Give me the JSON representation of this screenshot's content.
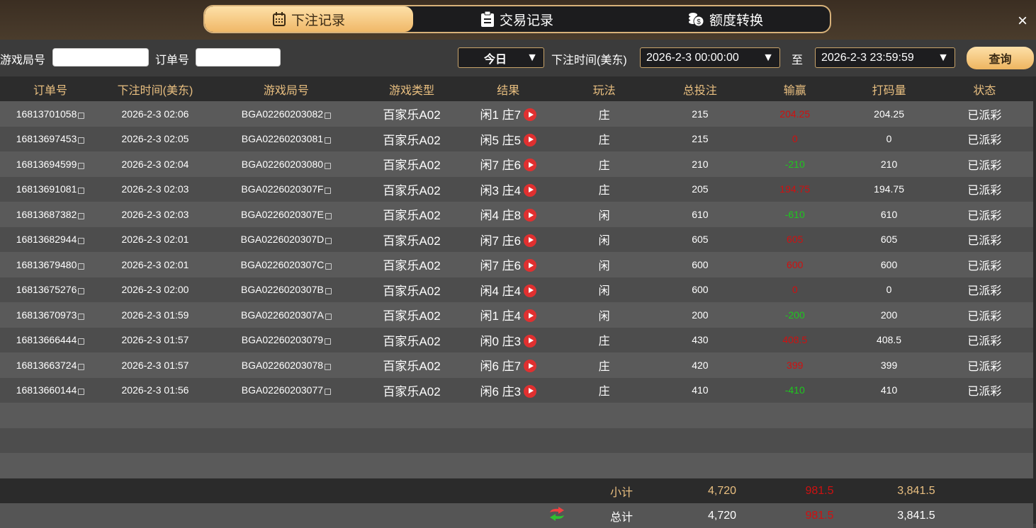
{
  "tabs": [
    {
      "label": "下注记录",
      "icon": "calendar-icon",
      "active": true
    },
    {
      "label": "交易记录",
      "icon": "clipboard-icon",
      "active": false
    },
    {
      "label": "额度转换",
      "icon": "coins-icon",
      "active": false
    }
  ],
  "close_icon": "×",
  "filter": {
    "game_no_label": "游戏局号",
    "game_no_value": "",
    "order_no_label": "订单号",
    "order_no_value": "",
    "period": "今日",
    "time_label": "下注时间(美东)",
    "start": "2026-2-3 00:00:00",
    "to": "至",
    "end": "2026-2-3 23:59:59",
    "query": "查询",
    "arrow": "▼"
  },
  "columns": [
    "订单号",
    "下注时间(美东)",
    "游戏局号",
    "游戏类型",
    "结果",
    "玩法",
    "总投注",
    "输赢",
    "打码量",
    "状态"
  ],
  "rows": [
    [
      "16813701058",
      "2026-2-3 02:06",
      "BGA02260203082",
      "百家乐A02",
      "闲1 庄7",
      "庄",
      "215",
      "204.25",
      "204.25",
      "已派彩",
      "red"
    ],
    [
      "16813697453",
      "2026-2-3 02:05",
      "BGA02260203081",
      "百家乐A02",
      "闲5 庄5",
      "庄",
      "215",
      "0",
      "0",
      "已派彩",
      "red"
    ],
    [
      "16813694599",
      "2026-2-3 02:04",
      "BGA02260203080",
      "百家乐A02",
      "闲7 庄6",
      "庄",
      "210",
      "-210",
      "210",
      "已派彩",
      "green"
    ],
    [
      "16813691081",
      "2026-2-3 02:03",
      "BGA0226020307F",
      "百家乐A02",
      "闲3 庄4",
      "庄",
      "205",
      "194.75",
      "194.75",
      "已派彩",
      "red"
    ],
    [
      "16813687382",
      "2026-2-3 02:03",
      "BGA0226020307E",
      "百家乐A02",
      "闲4 庄8",
      "闲",
      "610",
      "-610",
      "610",
      "已派彩",
      "green"
    ],
    [
      "16813682944",
      "2026-2-3 02:01",
      "BGA0226020307D",
      "百家乐A02",
      "闲7 庄6",
      "闲",
      "605",
      "605",
      "605",
      "已派彩",
      "red"
    ],
    [
      "16813679480",
      "2026-2-3 02:01",
      "BGA0226020307C",
      "百家乐A02",
      "闲7 庄6",
      "闲",
      "600",
      "600",
      "600",
      "已派彩",
      "red"
    ],
    [
      "16813675276",
      "2026-2-3 02:00",
      "BGA0226020307B",
      "百家乐A02",
      "闲4 庄4",
      "闲",
      "600",
      "0",
      "0",
      "已派彩",
      "red"
    ],
    [
      "16813670973",
      "2026-2-3 01:59",
      "BGA0226020307A",
      "百家乐A02",
      "闲1 庄4",
      "闲",
      "200",
      "-200",
      "200",
      "已派彩",
      "green"
    ],
    [
      "16813666444",
      "2026-2-3 01:57",
      "BGA02260203079",
      "百家乐A02",
      "闲0 庄3",
      "庄",
      "430",
      "408.5",
      "408.5",
      "已派彩",
      "red"
    ],
    [
      "16813663724",
      "2026-2-3 01:57",
      "BGA02260203078",
      "百家乐A02",
      "闲6 庄7",
      "庄",
      "420",
      "399",
      "399",
      "已派彩",
      "red"
    ],
    [
      "16813660144",
      "2026-2-3 01:56",
      "BGA02260203077",
      "百家乐A02",
      "闲6 庄3",
      "庄",
      "410",
      "-410",
      "410",
      "已派彩",
      "green"
    ]
  ],
  "subtotal": {
    "label": "小计",
    "bet": "4,720",
    "winloss": "981.5",
    "valid": "3,841.5"
  },
  "total": {
    "label": "总计",
    "bet": "4,720",
    "winloss": "981.5",
    "valid": "3,841.5",
    "icon": "refresh-icon"
  },
  "colors": {
    "accent": "#e9bf80",
    "win": "#d01010",
    "loss": "#1ec81e"
  }
}
